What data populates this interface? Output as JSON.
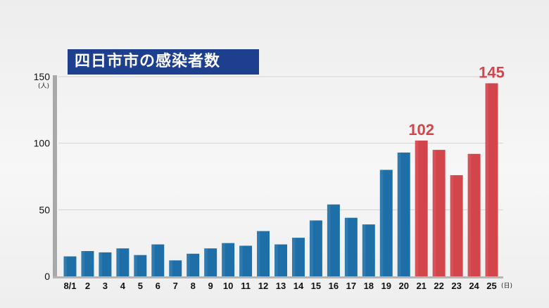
{
  "title": "四日市市の感染者数",
  "y_unit": "(人)",
  "x_unit": "(日)",
  "colors": {
    "blue": "#1e6fa8",
    "red": "#d2454a",
    "title_bg": "#1d3f8e"
  },
  "chart_data": {
    "type": "bar",
    "title": "四日市市の感染者数",
    "ylabel": "(人)",
    "xlabel": "(日)",
    "ylim": [
      0,
      150
    ],
    "yticks": [
      0,
      50,
      100,
      150
    ],
    "grid": true,
    "categories": [
      "8/1",
      "2",
      "3",
      "4",
      "5",
      "6",
      "7",
      "8",
      "9",
      "10",
      "11",
      "12",
      "13",
      "14",
      "15",
      "16",
      "17",
      "18",
      "19",
      "20",
      "21",
      "22",
      "23",
      "24",
      "25"
    ],
    "values": [
      15,
      19,
      18,
      21,
      16,
      24,
      12,
      17,
      21,
      25,
      23,
      34,
      24,
      29,
      42,
      54,
      44,
      39,
      80,
      93,
      102,
      95,
      76,
      92,
      145
    ],
    "bar_colors": [
      "blue",
      "blue",
      "blue",
      "blue",
      "blue",
      "blue",
      "blue",
      "blue",
      "blue",
      "blue",
      "blue",
      "blue",
      "blue",
      "blue",
      "blue",
      "blue",
      "blue",
      "blue",
      "blue",
      "blue",
      "red",
      "red",
      "red",
      "red",
      "red"
    ],
    "annotations": [
      {
        "category": "21",
        "text": "102"
      },
      {
        "category": "25",
        "text": "145"
      }
    ]
  }
}
